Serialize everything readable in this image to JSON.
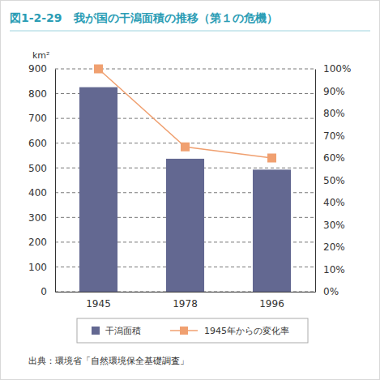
{
  "chart_data": {
    "type": "bar",
    "title": "図1-2-29　我が国の干潟面積の推移（第１の危機）",
    "y_label": "km²",
    "source": "出典：環境省「自然環境保全基礎調査」",
    "categories": [
      "1945",
      "1978",
      "1996"
    ],
    "series": [
      {
        "name": "干潟面積",
        "type": "bar",
        "color": "#636891",
        "values": [
          826,
          537,
          493
        ]
      },
      {
        "name": "1945年からの変化率",
        "type": "line",
        "color": "#f0a070",
        "marker": "square",
        "axis": "y2",
        "values": [
          100,
          65,
          60
        ]
      }
    ],
    "ylim": [
      0,
      900
    ],
    "yticks": [
      0,
      100,
      200,
      300,
      400,
      500,
      600,
      700,
      800,
      900
    ],
    "y2lim": [
      0,
      100
    ],
    "y2ticks": [
      {
        "value": 0,
        "label": "0%"
      },
      {
        "value": 10,
        "label": "10%"
      },
      {
        "value": 20,
        "label": "20%"
      },
      {
        "value": 30,
        "label": "30%"
      },
      {
        "value": 40,
        "label": "40%"
      },
      {
        "value": 50,
        "label": "50%"
      },
      {
        "value": 60,
        "label": "60%"
      },
      {
        "value": 70,
        "label": "70%"
      },
      {
        "value": 80,
        "label": "80%"
      },
      {
        "value": 90,
        "label": "90%"
      },
      {
        "value": 100,
        "label": "100%"
      }
    ],
    "grid": true,
    "legend": "bottom"
  }
}
